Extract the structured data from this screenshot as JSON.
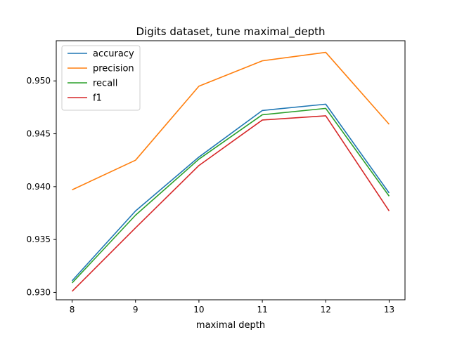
{
  "chart_data": {
    "type": "line",
    "title": "Digits dataset, tune maximal_depth",
    "xlabel": "maximal depth",
    "ylabel": "",
    "x": [
      8,
      9,
      10,
      11,
      12,
      13
    ],
    "x_tick_labels": [
      "8",
      "9",
      "10",
      "11",
      "12",
      "13"
    ],
    "y_ticks": [
      0.93,
      0.935,
      0.94,
      0.945,
      0.95
    ],
    "y_tick_labels": [
      "0.930",
      "0.935",
      "0.940",
      "0.945",
      "0.950"
    ],
    "xlim": [
      7.75,
      13.25
    ],
    "ylim": [
      0.9293,
      0.9538
    ],
    "grid": false,
    "legend_position": "top-left",
    "series": [
      {
        "name": "accuracy",
        "color": "#1f77b4",
        "values": [
          0.9311,
          0.9377,
          0.9428,
          0.9472,
          0.9478,
          0.9394
        ]
      },
      {
        "name": "precision",
        "color": "#ff7f0e",
        "values": [
          0.9397,
          0.9425,
          0.9495,
          0.9519,
          0.9527,
          0.9459
        ]
      },
      {
        "name": "recall",
        "color": "#2ca02c",
        "values": [
          0.9309,
          0.9373,
          0.9426,
          0.9468,
          0.9474,
          0.9391
        ]
      },
      {
        "name": "f1",
        "color": "#d62728",
        "values": [
          0.9301,
          0.9361,
          0.942,
          0.9463,
          0.9467,
          0.9377
        ]
      }
    ]
  }
}
